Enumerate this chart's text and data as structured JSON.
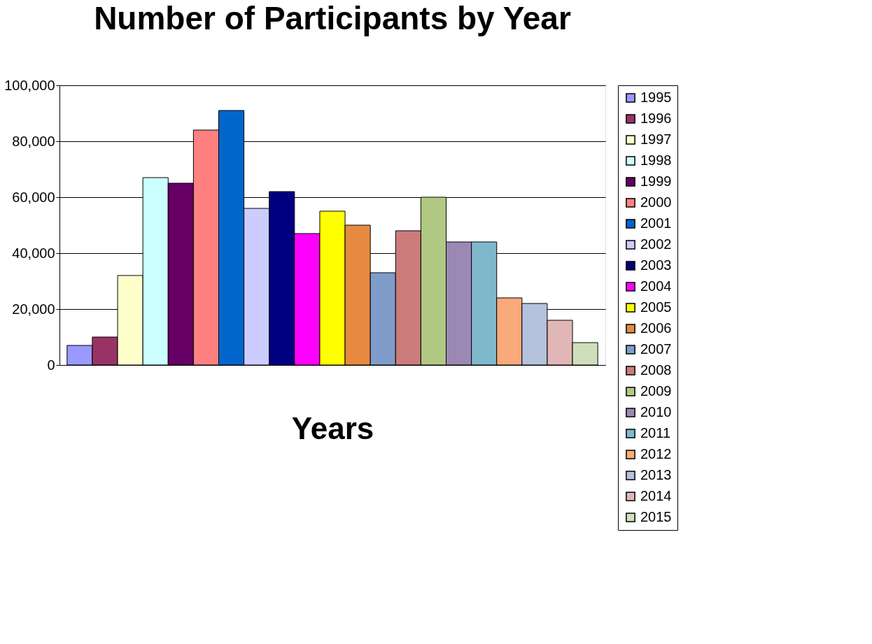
{
  "chart_data": {
    "type": "bar",
    "title": "Number of Participants by Year",
    "xlabel": "Years",
    "categories": [
      null,
      null,
      null,
      null,
      null,
      null,
      null,
      null,
      null,
      null,
      null,
      null,
      null,
      null,
      null,
      null,
      null,
      null,
      null,
      null,
      null
    ],
    "series": [
      {
        "name": "1995",
        "color": "#9999ff",
        "values": [
          7000,
          null,
          null,
          null,
          null,
          null,
          null,
          null,
          null,
          null,
          null,
          null,
          null,
          null,
          null,
          null,
          null,
          null,
          null,
          null,
          null
        ]
      },
      {
        "name": "1996",
        "color": "#993366",
        "values": [
          null,
          10000,
          null,
          null,
          null,
          null,
          null,
          null,
          null,
          null,
          null,
          null,
          null,
          null,
          null,
          null,
          null,
          null,
          null,
          null,
          null
        ]
      },
      {
        "name": "1997",
        "color": "#ffffcc",
        "values": [
          null,
          null,
          32000,
          null,
          null,
          null,
          null,
          null,
          null,
          null,
          null,
          null,
          null,
          null,
          null,
          null,
          null,
          null,
          null,
          null,
          null
        ]
      },
      {
        "name": "1998",
        "color": "#ccffff",
        "values": [
          null,
          null,
          null,
          67000,
          null,
          null,
          null,
          null,
          null,
          null,
          null,
          null,
          null,
          null,
          null,
          null,
          null,
          null,
          null,
          null,
          null
        ]
      },
      {
        "name": "1999",
        "color": "#660066",
        "values": [
          null,
          null,
          null,
          null,
          65000,
          null,
          null,
          null,
          null,
          null,
          null,
          null,
          null,
          null,
          null,
          null,
          null,
          null,
          null,
          null,
          null
        ]
      },
      {
        "name": "2000",
        "color": "#ff8080",
        "values": [
          null,
          null,
          null,
          null,
          null,
          84000,
          null,
          null,
          null,
          null,
          null,
          null,
          null,
          null,
          null,
          null,
          null,
          null,
          null,
          null,
          null
        ]
      },
      {
        "name": "2001",
        "color": "#0066cc",
        "values": [
          null,
          null,
          null,
          null,
          null,
          null,
          91000,
          null,
          null,
          null,
          null,
          null,
          null,
          null,
          null,
          null,
          null,
          null,
          null,
          null,
          null
        ]
      },
      {
        "name": "2002",
        "color": "#ccccff",
        "values": [
          null,
          null,
          null,
          null,
          null,
          null,
          null,
          56000,
          null,
          null,
          null,
          null,
          null,
          null,
          null,
          null,
          null,
          null,
          null,
          null,
          null
        ]
      },
      {
        "name": "2003",
        "color": "#000080",
        "values": [
          null,
          null,
          null,
          null,
          null,
          null,
          null,
          null,
          62000,
          null,
          null,
          null,
          null,
          null,
          null,
          null,
          null,
          null,
          null,
          null,
          null
        ]
      },
      {
        "name": "2004",
        "color": "#ff00ff",
        "values": [
          null,
          null,
          null,
          null,
          null,
          null,
          null,
          null,
          null,
          47000,
          null,
          null,
          null,
          null,
          null,
          null,
          null,
          null,
          null,
          null,
          null
        ]
      },
      {
        "name": "2005",
        "color": "#ffff00",
        "values": [
          null,
          null,
          null,
          null,
          null,
          null,
          null,
          null,
          null,
          null,
          55000,
          null,
          null,
          null,
          null,
          null,
          null,
          null,
          null,
          null,
          null
        ]
      },
      {
        "name": "2006",
        "color": "#e68a40",
        "values": [
          null,
          null,
          null,
          null,
          null,
          null,
          null,
          null,
          null,
          null,
          null,
          50000,
          null,
          null,
          null,
          null,
          null,
          null,
          null,
          null,
          null
        ]
      },
      {
        "name": "2007",
        "color": "#7f9ccb",
        "values": [
          null,
          null,
          null,
          null,
          null,
          null,
          null,
          null,
          null,
          null,
          null,
          null,
          33000,
          null,
          null,
          null,
          null,
          null,
          null,
          null,
          null
        ]
      },
      {
        "name": "2008",
        "color": "#cc7b7b",
        "values": [
          null,
          null,
          null,
          null,
          null,
          null,
          null,
          null,
          null,
          null,
          null,
          null,
          null,
          48000,
          null,
          null,
          null,
          null,
          null,
          null,
          null
        ]
      },
      {
        "name": "2009",
        "color": "#b0c882",
        "values": [
          null,
          null,
          null,
          null,
          null,
          null,
          null,
          null,
          null,
          null,
          null,
          null,
          null,
          null,
          60000,
          null,
          null,
          null,
          null,
          null,
          null
        ]
      },
      {
        "name": "2010",
        "color": "#9b88b4",
        "values": [
          null,
          null,
          null,
          null,
          null,
          null,
          null,
          null,
          null,
          null,
          null,
          null,
          null,
          null,
          null,
          44000,
          null,
          null,
          null,
          null,
          null
        ]
      },
      {
        "name": "2011",
        "color": "#7fb8cc",
        "values": [
          null,
          null,
          null,
          null,
          null,
          null,
          null,
          null,
          null,
          null,
          null,
          null,
          null,
          null,
          null,
          null,
          44000,
          null,
          null,
          null,
          null
        ]
      },
      {
        "name": "2012",
        "color": "#f9a97a",
        "values": [
          null,
          null,
          null,
          null,
          null,
          null,
          null,
          null,
          null,
          null,
          null,
          null,
          null,
          null,
          null,
          null,
          null,
          24000,
          null,
          null,
          null
        ]
      },
      {
        "name": "2013",
        "color": "#b6c1dc",
        "values": [
          null,
          null,
          null,
          null,
          null,
          null,
          null,
          null,
          null,
          null,
          null,
          null,
          null,
          null,
          null,
          null,
          null,
          null,
          22000,
          null,
          null
        ]
      },
      {
        "name": "2014",
        "color": "#e0b6b6",
        "values": [
          null,
          null,
          null,
          null,
          null,
          null,
          null,
          null,
          null,
          null,
          null,
          null,
          null,
          null,
          null,
          null,
          null,
          null,
          null,
          16000,
          null
        ]
      },
      {
        "name": "2015",
        "color": "#d0dfbb",
        "values": [
          null,
          null,
          null,
          null,
          null,
          null,
          null,
          null,
          null,
          null,
          null,
          null,
          null,
          null,
          null,
          null,
          null,
          null,
          null,
          null,
          8000
        ]
      }
    ],
    "ylim": [
      0,
      100000
    ],
    "yticks": [
      0,
      {
        "value": 20000,
        "label": "20,000"
      },
      {
        "value": 40000,
        "label": "40,000"
      },
      {
        "value": 60000,
        "label": "60,000"
      },
      {
        "value": 80000,
        "label": "80,000"
      },
      {
        "value": 100000,
        "label": "100,000"
      }
    ],
    "grid": "y",
    "legend": "right",
    "tick_labels": "y"
  }
}
